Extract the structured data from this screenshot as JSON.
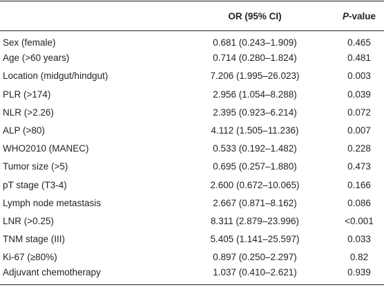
{
  "table": {
    "header": [
      "",
      "OR (95% CI)",
      {
        "italic": "P",
        "rest": "-value"
      }
    ],
    "rows": [
      [
        "Sex (female)",
        "0.681 (0.243–1.909)",
        "0.465"
      ],
      [
        "Age (>60 years)",
        "0.714 (0.280–1.824)",
        "0.481"
      ],
      [
        "Location (midgut/hindgut)",
        "7.206 (1.995–26.023)",
        "0.003"
      ],
      [
        "PLR (>174)",
        "2.956 (1.054–8.288)",
        "0.039"
      ],
      [
        "NLR (>2.26)",
        "2.395 (0.923–6.214)",
        "0.072"
      ],
      [
        "ALP (>80)",
        "4.112 (1.505–11.236)",
        "0.007"
      ],
      [
        "WHO2010 (MANEC)",
        "0.533 (0.192–1.482)",
        "0.228"
      ],
      [
        "Tumor size (>5)",
        "0.695 (0.257–1.880)",
        "0.473"
      ],
      [
        "pT stage (T3-4)",
        "2.600 (0.672–10.065)",
        "0.166"
      ],
      [
        "Lymph node metastasis",
        "2.667 (0.871–8.162)",
        "0.086"
      ],
      [
        "LNR (>0.25)",
        "8.311 (2.879–23.996)",
        "<0.001"
      ],
      [
        "TNM stage (III)",
        "5.405 (1.141–25.597)",
        "0.033"
      ],
      [
        "Ki-67 (≥80%)",
        "0.897 (0.250–2.297)",
        "0.82"
      ],
      [
        "Adjuvant chemotherapy",
        "1.037 (0.410–2.621)",
        "0.939"
      ]
    ]
  }
}
